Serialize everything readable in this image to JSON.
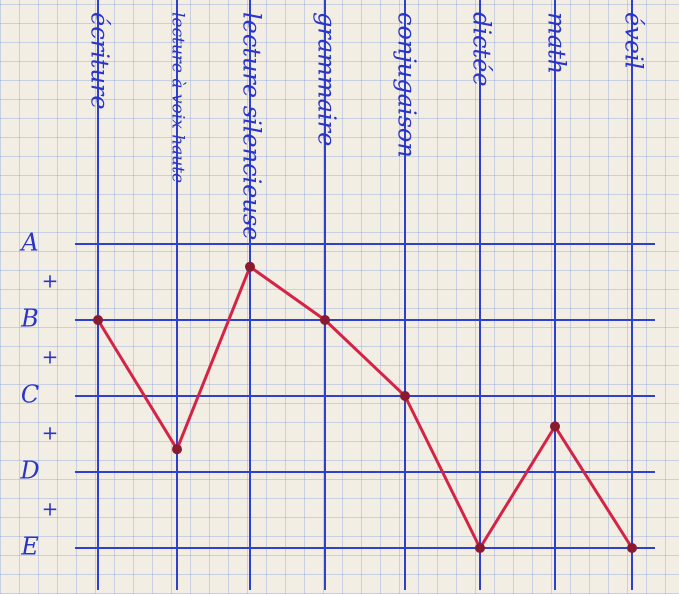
{
  "chart_data": {
    "type": "line",
    "categories": [
      "écriture",
      "lecture à voix haute",
      "lecture silencieuse",
      "grammaire",
      "conjugaison",
      "dictée",
      "math",
      "éveil"
    ],
    "series": [
      {
        "color": "#d42345",
        "values": [
          3,
          1.3,
          3.7,
          3,
          2,
          0,
          1.6,
          0
        ]
      }
    ],
    "ylim": [
      0,
      4
    ],
    "yticks": [
      {
        "value": 0,
        "label": "E"
      },
      {
        "value": 0.5,
        "label": "+"
      },
      {
        "value": 1,
        "label": "D"
      },
      {
        "value": 1.5,
        "label": "+"
      },
      {
        "value": 2,
        "label": "C"
      },
      {
        "value": 2.5,
        "label": "+"
      },
      {
        "value": 3,
        "label": "B"
      },
      {
        "value": 3.5,
        "label": "+"
      },
      {
        "value": 4,
        "label": "A"
      }
    ],
    "grid": true
  }
}
